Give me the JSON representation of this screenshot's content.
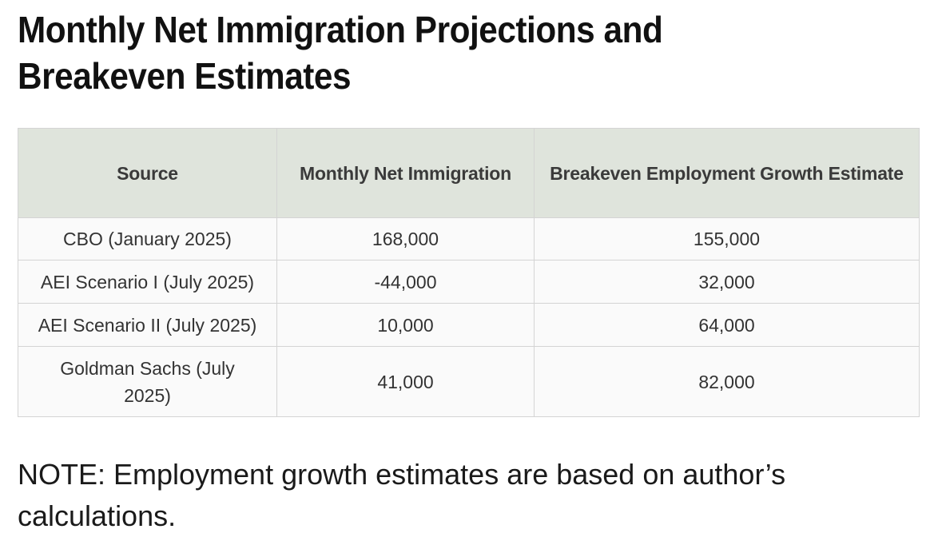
{
  "title": "Monthly Net Immigration Projections and Breakeven Estimates",
  "table": {
    "headers": [
      "Source",
      "Monthly Net Immigration",
      "Breakeven Employment Growth Estimate"
    ],
    "rows": [
      [
        "CBO (January 2025)",
        "168,000",
        "155,000"
      ],
      [
        "AEI Scenario I (July 2025)",
        "-44,000",
        "32,000"
      ],
      [
        "AEI Scenario II (July 2025)",
        "10,000",
        "64,000"
      ],
      [
        "Goldman Sachs (July 2025)",
        "41,000",
        "82,000"
      ]
    ]
  },
  "note": "NOTE: Employment growth estimates are based on author’s calculations."
}
